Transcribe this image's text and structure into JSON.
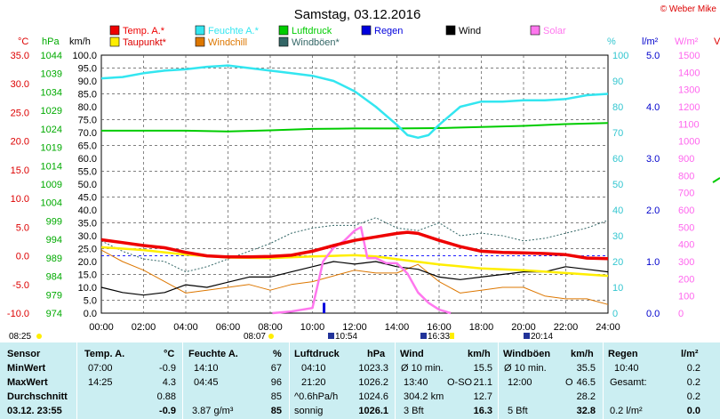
{
  "page": {
    "title": "Samstag, 03.12.2016",
    "copyright": "© Weber Mike"
  },
  "axes": {
    "unit_labels": {
      "temp": "°C",
      "pressure": "hPa",
      "wind": "km/h",
      "humidity": "%",
      "rain": "l/m²",
      "solar": "W/m²"
    },
    "temp_ticks": [
      "35.0",
      "30.0",
      "25.0",
      "20.0",
      "15.0",
      "10.0",
      "5.0",
      "0.0",
      "-5.0",
      "-10.0"
    ],
    "pressure_ticks": [
      "1044",
      "1039",
      "1034",
      "1029",
      "1024",
      "1019",
      "1014",
      "1009",
      "1004",
      "999",
      "994",
      "989",
      "984",
      "979",
      "974"
    ],
    "wind_ticks": [
      "100.0",
      "95.0",
      "90.0",
      "85.0",
      "80.0",
      "75.0",
      "70.0",
      "65.0",
      "60.0",
      "55.0",
      "50.0",
      "45.0",
      "40.0",
      "35.0",
      "30.0",
      "25.0",
      "20.0",
      "15.0",
      "10.0",
      "5.0",
      "0.0"
    ],
    "humidity_ticks": [
      "100",
      "90",
      "80",
      "70",
      "60",
      "50",
      "40",
      "30",
      "20",
      "10",
      "0"
    ],
    "rain_ticks": [
      "5.0",
      "4.0",
      "3.0",
      "2.0",
      "1.0",
      "0.0"
    ],
    "solar_ticks": [
      "1500",
      "1400",
      "1300",
      "1200",
      "1100",
      "1000",
      "900",
      "800",
      "700",
      "600",
      "500",
      "400",
      "300",
      "200",
      "100",
      "0"
    ],
    "time_ticks": [
      "00:00",
      "02:00",
      "04:00",
      "06:00",
      "08:00",
      "10:00",
      "12:00",
      "14:00",
      "16:00",
      "18:00",
      "20:00",
      "22:00",
      "24:00"
    ]
  },
  "sun_markers": [
    {
      "time": "08:25"
    },
    {
      "time": "08:07"
    },
    {
      "time": "10:54"
    },
    {
      "time": "16:33"
    },
    {
      "time": "20:14"
    }
  ],
  "chart_data": {
    "type": "line",
    "title": "Samstag, 03.12.2016",
    "x_range": [
      "00:00",
      "24:00"
    ],
    "legend": [
      {
        "name": "Temp. A.*",
        "color": "#ee0000"
      },
      {
        "name": "Feuchte A.*",
        "color": "#33e6f0"
      },
      {
        "name": "Luftdruck",
        "color": "#00cc00"
      },
      {
        "name": "Regen",
        "color": "#0000dd"
      },
      {
        "name": "Wind",
        "color": "#000000"
      },
      {
        "name": "Solar",
        "color": "#ff77ee"
      },
      {
        "name": "Taupunkt*",
        "color": "#ffee00"
      },
      {
        "name": "Windchill",
        "color": "#dd7700"
      },
      {
        "name": "Windböen*",
        "color": "#336666"
      }
    ],
    "series": [
      {
        "name": "Temp. A.*",
        "axis": "°C",
        "color": "#ee0000",
        "x": [
          0,
          1,
          2,
          3,
          4,
          5,
          6,
          7,
          8,
          9,
          10,
          11,
          12,
          13,
          14,
          14.5,
          15,
          16,
          17,
          18,
          19,
          20,
          21,
          22,
          23,
          24
        ],
        "y": [
          2.8,
          2.3,
          1.8,
          1.4,
          0.6,
          0.0,
          -0.2,
          -0.2,
          -0.1,
          0.1,
          0.8,
          1.8,
          2.7,
          3.3,
          3.9,
          4.1,
          3.9,
          2.7,
          1.6,
          0.8,
          0.6,
          0.5,
          0.4,
          0.2,
          -0.4,
          -0.5
        ]
      },
      {
        "name": "Taupunkt*",
        "axis": "°C",
        "color": "#ffee00",
        "x": [
          0,
          2,
          4,
          6,
          8,
          10,
          11,
          12,
          13,
          14,
          16,
          18,
          20,
          22,
          24
        ],
        "y": [
          1.5,
          1.0,
          0.2,
          -0.3,
          -0.4,
          -0.1,
          0.0,
          0.1,
          -0.1,
          -0.6,
          -1.5,
          -2.2,
          -2.5,
          -3.0,
          -3.5
        ]
      },
      {
        "name": "Feuchte A.*",
        "axis": "%",
        "color": "#33e6f0",
        "x": [
          0,
          1,
          2,
          3,
          4,
          5,
          6,
          7,
          8,
          9,
          10,
          11,
          12,
          13,
          14,
          14.5,
          15,
          15.5,
          16,
          17,
          18,
          19,
          20,
          21,
          22,
          23,
          24
        ],
        "y": [
          91,
          91.5,
          93,
          94,
          94.5,
          95.5,
          96,
          95,
          94,
          93,
          92,
          90,
          86,
          80,
          73,
          69,
          68,
          69,
          73,
          80,
          82,
          82,
          82.5,
          82.5,
          83,
          84.5,
          85
        ]
      },
      {
        "name": "Luftdruck",
        "axis": "hPa",
        "color": "#00cc00",
        "x": [
          0,
          2,
          4,
          6,
          8,
          10,
          12,
          14,
          16,
          18,
          20,
          22,
          24
        ],
        "y": [
          1023.5,
          1023.5,
          1023.5,
          1023.3,
          1023.6,
          1024.0,
          1024.1,
          1024.1,
          1024.2,
          1024.5,
          1024.8,
          1025.3,
          1025.6
        ]
      },
      {
        "name": "Windböen*",
        "axis": "km/h",
        "color": "#336666",
        "x": [
          0,
          1,
          2,
          3,
          4,
          5,
          6,
          7,
          8,
          9,
          10,
          11,
          12,
          13,
          14,
          15,
          16,
          17,
          18,
          19,
          20,
          21,
          22,
          23,
          24
        ],
        "y": [
          28,
          24,
          21,
          20,
          16,
          18,
          21,
          24,
          27,
          31,
          33,
          34,
          34,
          37,
          33,
          32,
          35,
          30,
          31,
          30,
          28,
          29,
          31,
          33,
          36
        ]
      },
      {
        "name": "Wind",
        "axis": "km/h",
        "color": "#000000",
        "x": [
          0,
          1,
          2,
          3,
          4,
          5,
          6,
          7,
          8,
          9,
          10,
          11,
          12,
          13,
          14,
          15,
          16,
          17,
          18,
          19,
          20,
          21,
          22,
          23,
          24
        ],
        "y": [
          10,
          8,
          7,
          8,
          11,
          10,
          12,
          14,
          14,
          16,
          18,
          20,
          19,
          20,
          18,
          17,
          14,
          13,
          14,
          15,
          16,
          16,
          18,
          17,
          16
        ]
      },
      {
        "name": "Windchill",
        "axis": "°C",
        "color": "#dd7700",
        "x": [
          0,
          1,
          2,
          3,
          4,
          5,
          6,
          7,
          8,
          9,
          10,
          11,
          12,
          13,
          14,
          15,
          16,
          17,
          18,
          19,
          20,
          21,
          22,
          23,
          24
        ],
        "y": [
          1.0,
          -1.0,
          -2.5,
          -4.5,
          -6.5,
          -6.0,
          -5.5,
          -5.0,
          -6.0,
          -5.0,
          -4.5,
          -3.5,
          -2.5,
          -3.0,
          -3.0,
          -1.5,
          -4.5,
          -6.5,
          -6.0,
          -5.5,
          -5.5,
          -7.0,
          -7.5,
          -7.5,
          -8.5
        ]
      },
      {
        "name": "Solar",
        "axis": "W/m²",
        "color": "#ff77ee",
        "x": [
          8.1,
          9,
          10,
          10.5,
          11,
          11.5,
          12,
          12.3,
          12.6,
          13,
          13.5,
          14,
          14.5,
          15,
          15.5,
          16,
          16.55
        ],
        "y": [
          0,
          10,
          30,
          300,
          380,
          420,
          480,
          500,
          320,
          320,
          290,
          290,
          230,
          120,
          60,
          20,
          0
        ]
      },
      {
        "name": "Regen",
        "axis": "l/m²",
        "color": "#0000dd",
        "bars": [
          {
            "x": 10.55,
            "y": 0.2
          }
        ]
      }
    ]
  },
  "summary": {
    "headers": {
      "sensor": "Sensor",
      "temp": "Temp. A.",
      "temp_unit": "°C",
      "hum": "Feuchte A.",
      "hum_unit": "%",
      "press": "Luftdruck",
      "press_unit": "hPa",
      "wind": "Wind",
      "wind_unit": "km/h",
      "gust": "Windböen",
      "gust_unit": "km/h",
      "rain": "Regen",
      "rain_unit": "l/m²"
    },
    "rows": {
      "min": {
        "label": "MinWert",
        "temp_time": "07:00",
        "temp": "-0.9",
        "hum_time": "14:10",
        "hum": "67",
        "press_time": "04:10",
        "press": "1023.3",
        "wind_label": "Ø 10 min.",
        "wind": "15.5",
        "gust_label": "Ø 10 min.",
        "gust": "35.5",
        "rain_time": "10:40",
        "rain": "0.2"
      },
      "max": {
        "label": "MaxWert",
        "temp_time": "14:25",
        "temp": "4.3",
        "hum_time": "04:45",
        "hum": "96",
        "press_time": "21:20",
        "press": "1026.2",
        "wind_time": "13:40",
        "wind_dir": "O-SO",
        "wind": "21.1",
        "gust_time": "12:00",
        "gust_dir": "O",
        "gust": "46.5",
        "rain_label": "Gesamt:",
        "rain": "0.2"
      },
      "avg": {
        "label": "Durchschnitt",
        "temp": "0.88",
        "hum": "85",
        "press_label": "^0.6hPa/h",
        "press": "1024.6",
        "wind_dist": "304.2 km",
        "wind": "12.7",
        "gust": "28.2",
        "rain": "0.2"
      },
      "now": {
        "label": "03.12. 23:55",
        "temp": "-0.9",
        "hum_abs": "3.87 g/m³",
        "hum": "85",
        "press_text": "sonnig",
        "press": "1026.1",
        "wind_bft": "3 Bft",
        "wind": "16.3",
        "gust_bft": "5 Bft",
        "gust": "32.8",
        "rain_rate": "0.2 l/m²",
        "rain": "0.0"
      }
    }
  }
}
